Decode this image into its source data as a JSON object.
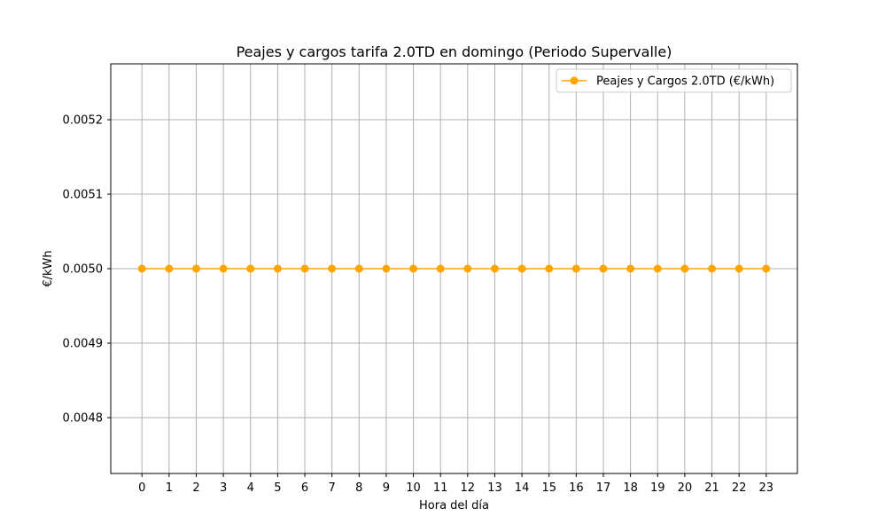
{
  "chart_data": {
    "type": "line",
    "title": "Peajes y cargos tarifa 2.0TD en domingo (Periodo Supervalle)",
    "xlabel": "Hora del día",
    "ylabel": "€/kWh",
    "x": [
      0,
      1,
      2,
      3,
      4,
      5,
      6,
      7,
      8,
      9,
      10,
      11,
      12,
      13,
      14,
      15,
      16,
      17,
      18,
      19,
      20,
      21,
      22,
      23
    ],
    "x_tick_labels": [
      "0",
      "1",
      "2",
      "3",
      "4",
      "5",
      "6",
      "7",
      "8",
      "9",
      "10",
      "11",
      "12",
      "13",
      "14",
      "15",
      "16",
      "17",
      "18",
      "19",
      "20",
      "21",
      "22",
      "23"
    ],
    "xlim": [
      -1.15,
      24.15
    ],
    "ylim": [
      0.004725,
      0.005275
    ],
    "y_ticks": [
      0.0048,
      0.0049,
      0.005,
      0.0051,
      0.0052
    ],
    "y_tick_labels": [
      "0.0048",
      "0.0049",
      "0.0050",
      "0.0051",
      "0.0052"
    ],
    "series": [
      {
        "name": "Peajes y Cargos 2.0TD (€/kWh)",
        "color": "#ffa500",
        "marker": "circle",
        "values": [
          0.005,
          0.005,
          0.005,
          0.005,
          0.005,
          0.005,
          0.005,
          0.005,
          0.005,
          0.005,
          0.005,
          0.005,
          0.005,
          0.005,
          0.005,
          0.005,
          0.005,
          0.005,
          0.005,
          0.005,
          0.005,
          0.005,
          0.005,
          0.005
        ]
      }
    ],
    "grid": true,
    "grid_color": "#b0b0b0",
    "legend_position": "top-right"
  }
}
